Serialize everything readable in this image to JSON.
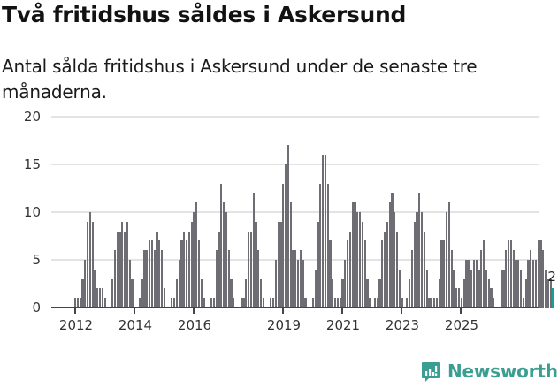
{
  "header": {
    "title": "Två fritidshus såldes i Askersund",
    "subtitle": "Antal sålda fritidshus i Askersund under de senaste tre månaderna."
  },
  "branding": {
    "logo_text": "Newsworthy",
    "color": "#3a9e92"
  },
  "colors": {
    "bar": "#6e6d73",
    "highlight": "#1b9e95",
    "grid": "#e3e3e3",
    "axis": "#444444"
  },
  "chart_data": {
    "type": "bar",
    "title": "Två fritidshus såldes i Askersund",
    "subtitle": "Antal sålda fritidshus i Askersund under de senaste tre månaderna.",
    "xlabel": "",
    "ylabel": "",
    "ylim": [
      0,
      20
    ],
    "yticks": [
      0,
      5,
      10,
      15,
      20
    ],
    "xticks": [
      "2012",
      "2014",
      "2016",
      "2019",
      "2021",
      "2023",
      "2025"
    ],
    "grid": true,
    "legend": null,
    "annotation": {
      "label": "2",
      "value": 2,
      "on": "last bar"
    },
    "series": [
      {
        "name": "Sålda fritidshus (rullande 3 mån)",
        "start": "2012-01",
        "frequency": "monthly",
        "values": [
          1,
          1,
          1,
          3,
          5,
          9,
          10,
          9,
          4,
          2,
          2,
          2,
          1,
          0,
          0,
          3,
          6,
          8,
          8,
          9,
          8,
          9,
          5,
          3,
          0,
          0,
          1,
          3,
          6,
          6,
          7,
          7,
          6,
          8,
          7,
          6,
          2,
          0,
          0,
          1,
          1,
          3,
          5,
          7,
          8,
          7,
          8,
          9,
          10,
          11,
          7,
          3,
          1,
          0,
          0,
          1,
          1,
          6,
          8,
          13,
          11,
          10,
          6,
          3,
          1,
          0,
          0,
          1,
          1,
          3,
          8,
          8,
          12,
          9,
          6,
          3,
          1,
          0,
          0,
          1,
          1,
          5,
          9,
          9,
          13,
          15,
          17,
          11,
          6,
          6,
          5,
          6,
          5,
          1,
          0,
          0,
          1,
          4,
          9,
          13,
          16,
          16,
          13,
          7,
          3,
          1,
          1,
          1,
          3,
          5,
          7,
          8,
          11,
          11,
          10,
          10,
          9,
          7,
          3,
          1,
          0,
          1,
          1,
          3,
          7,
          8,
          9,
          11,
          12,
          10,
          8,
          4,
          1,
          0,
          1,
          3,
          6,
          9,
          10,
          12,
          10,
          8,
          4,
          1,
          1,
          1,
          1,
          3,
          7,
          7,
          10,
          11,
          6,
          4,
          2,
          2,
          1,
          3,
          5,
          5,
          4,
          5,
          5,
          4,
          6,
          7,
          4,
          3,
          2,
          1,
          0,
          0,
          4,
          4,
          6,
          7,
          7,
          6,
          5,
          5,
          4,
          1,
          3,
          5,
          6,
          5,
          5,
          7,
          7,
          6,
          4,
          3,
          3,
          2
        ],
        "last_value": 2
      }
    ]
  }
}
